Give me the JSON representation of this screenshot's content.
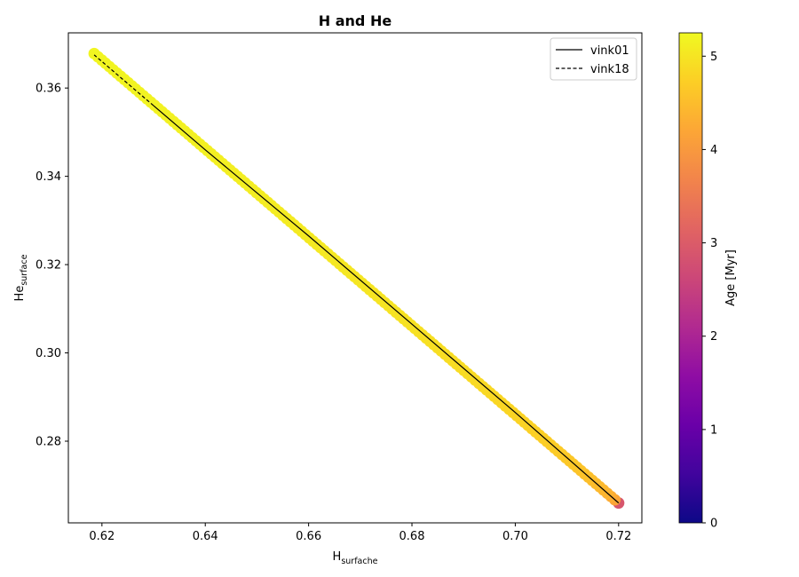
{
  "chart_data": {
    "type": "scatter",
    "title": "H and He",
    "xlabel": "H",
    "xlabel_sub": "surfache",
    "ylabel": "He",
    "ylabel_sub": "surface",
    "xlim": [
      0.6135,
      0.7245
    ],
    "ylim": [
      0.2615,
      0.3725
    ],
    "xticks": [
      0.62,
      0.64,
      0.66,
      0.68,
      0.7,
      0.72
    ],
    "xtick_labels": [
      "0.62",
      "0.64",
      "0.66",
      "0.68",
      "0.70",
      "0.72"
    ],
    "yticks": [
      0.28,
      0.3,
      0.32,
      0.34,
      0.36
    ],
    "ytick_labels": [
      "0.28",
      "0.30",
      "0.32",
      "0.34",
      "0.36"
    ],
    "grid": false,
    "legend_position": "top-right",
    "series": [
      {
        "name": "vink01",
        "style": "solid",
        "color": "#000000",
        "x": [
          0.72,
          0.7,
          0.68,
          0.66,
          0.64,
          0.63
        ],
        "y": [
          0.266,
          0.2865,
          0.3065,
          0.3265,
          0.346,
          0.356
        ]
      },
      {
        "name": "vink18",
        "style": "dashed",
        "color": "#000000",
        "x": [
          0.63,
          0.625,
          0.6185
        ],
        "y": [
          0.356,
          0.361,
          0.3675
        ]
      }
    ],
    "scatter": {
      "x_start": 0.72,
      "y_start": 0.266,
      "x_end": 0.6185,
      "y_end": 0.3678,
      "count": 140,
      "age_start": 2.9,
      "age_end": 5.2,
      "colormap": "plasma"
    },
    "colorbar": {
      "label": "Age [Myr]",
      "range": [
        0,
        5.25
      ],
      "ticks": [
        0,
        1,
        2,
        3,
        4,
        5
      ],
      "tick_labels": [
        "0",
        "1",
        "2",
        "3",
        "4",
        "5"
      ]
    }
  }
}
